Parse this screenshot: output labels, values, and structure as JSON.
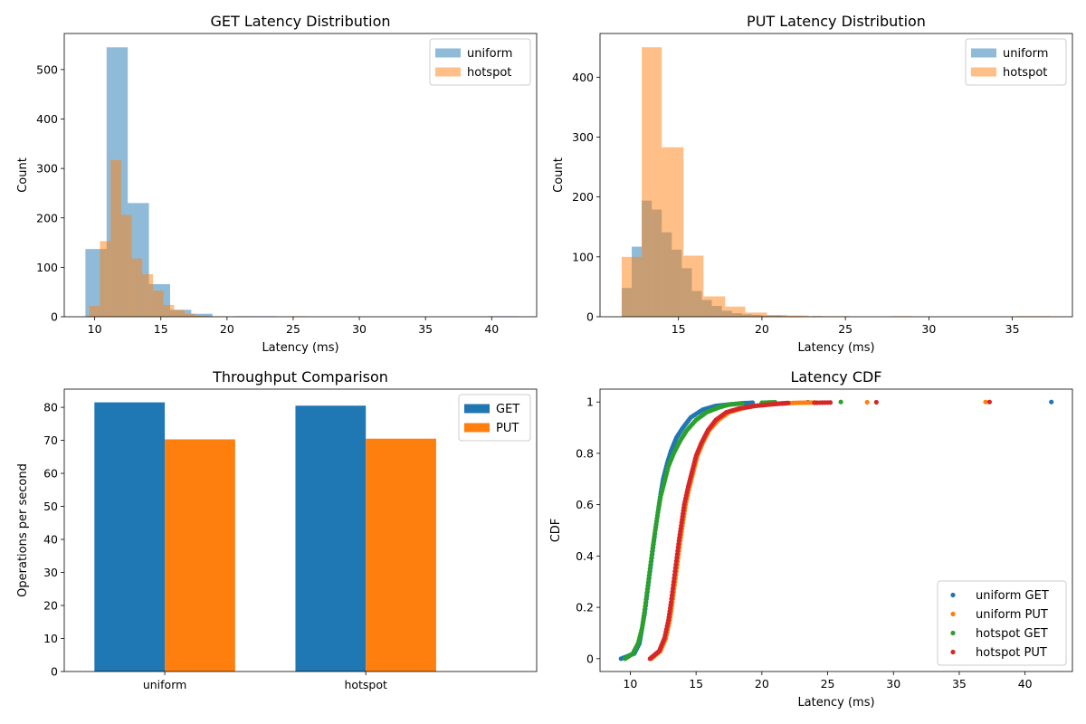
{
  "colors": {
    "blue": "#1f77b4",
    "orange": "#ff7f0e",
    "green": "#2ca02c",
    "red": "#d62728"
  },
  "chart_data": [
    {
      "type": "bar",
      "subtype": "histogram",
      "title": "GET Latency Distribution",
      "xlabel": "Latency (ms)",
      "ylabel": "Count",
      "xlim": [
        7.7,
        43.4
      ],
      "ylim": [
        0,
        573
      ],
      "xticks": [
        10,
        15,
        20,
        25,
        30,
        35,
        40
      ],
      "yticks": [
        0,
        100,
        200,
        300,
        400,
        500
      ],
      "legend_position": "top-right",
      "series": [
        {
          "name": "uniform",
          "color": "#1f77b4",
          "opacity": 0.5,
          "bins": [
            {
              "x0": 9.3,
              "x1": 10.9,
              "count": 137
            },
            {
              "x0": 10.9,
              "x1": 12.5,
              "count": 545
            },
            {
              "x0": 12.5,
              "x1": 14.1,
              "count": 230
            },
            {
              "x0": 14.1,
              "x1": 15.7,
              "count": 66
            },
            {
              "x0": 15.7,
              "x1": 17.3,
              "count": 14
            },
            {
              "x0": 17.3,
              "x1": 18.9,
              "count": 6
            },
            {
              "x0": 18.9,
              "x1": 20.5,
              "count": 0
            },
            {
              "x0": 20.5,
              "x1": 22.1,
              "count": 1
            },
            {
              "x0": 22.1,
              "x1": 23.7,
              "count": 1
            },
            {
              "x0": 23.7,
              "x1": 25.3,
              "count": 0
            },
            {
              "x0": 25.3,
              "x1": 26.9,
              "count": 0
            },
            {
              "x0": 26.9,
              "x1": 28.5,
              "count": 0
            },
            {
              "x0": 28.5,
              "x1": 30.1,
              "count": 0
            },
            {
              "x0": 30.1,
              "x1": 31.7,
              "count": 0
            },
            {
              "x0": 31.7,
              "x1": 33.3,
              "count": 0
            },
            {
              "x0": 33.3,
              "x1": 34.9,
              "count": 0
            },
            {
              "x0": 34.9,
              "x1": 36.5,
              "count": 0
            },
            {
              "x0": 36.5,
              "x1": 38.1,
              "count": 0
            },
            {
              "x0": 38.1,
              "x1": 39.7,
              "count": 0
            },
            {
              "x0": 39.7,
              "x1": 42.0,
              "count": 1
            }
          ]
        },
        {
          "name": "hotspot",
          "color": "#ff7f0e",
          "opacity": 0.5,
          "bins": [
            {
              "x0": 9.6,
              "x1": 10.4,
              "count": 22
            },
            {
              "x0": 10.4,
              "x1": 11.2,
              "count": 153
            },
            {
              "x0": 11.2,
              "x1": 12.0,
              "count": 317
            },
            {
              "x0": 12.0,
              "x1": 12.8,
              "count": 206
            },
            {
              "x0": 12.8,
              "x1": 13.6,
              "count": 118
            },
            {
              "x0": 13.6,
              "x1": 14.4,
              "count": 86
            },
            {
              "x0": 14.4,
              "x1": 15.2,
              "count": 53
            },
            {
              "x0": 15.2,
              "x1": 16.0,
              "count": 24
            },
            {
              "x0": 16.0,
              "x1": 16.8,
              "count": 14
            },
            {
              "x0": 16.8,
              "x1": 17.6,
              "count": 6
            },
            {
              "x0": 17.6,
              "x1": 18.4,
              "count": 2
            },
            {
              "x0": 18.4,
              "x1": 19.2,
              "count": 1
            },
            {
              "x0": 19.2,
              "x1": 20.0,
              "count": 1
            },
            {
              "x0": 20.0,
              "x1": 20.8,
              "count": 0
            },
            {
              "x0": 20.8,
              "x1": 21.6,
              "count": 1
            },
            {
              "x0": 21.6,
              "x1": 22.4,
              "count": 0
            },
            {
              "x0": 22.4,
              "x1": 23.2,
              "count": 0
            },
            {
              "x0": 23.2,
              "x1": 24.0,
              "count": 0
            },
            {
              "x0": 24.0,
              "x1": 24.8,
              "count": 0
            },
            {
              "x0": 24.8,
              "x1": 26.0,
              "count": 1
            }
          ]
        }
      ]
    },
    {
      "type": "bar",
      "subtype": "histogram",
      "title": "PUT Latency Distribution",
      "xlabel": "Latency (ms)",
      "ylabel": "Count",
      "xlim": [
        10.3,
        38.6
      ],
      "ylim": [
        0,
        473
      ],
      "xticks": [
        15,
        20,
        25,
        30,
        35
      ],
      "yticks": [
        0,
        100,
        200,
        300,
        400
      ],
      "legend_position": "top-right",
      "series": [
        {
          "name": "uniform",
          "color": "#1f77b4",
          "opacity": 0.5,
          "bins": [
            {
              "x0": 11.6,
              "x1": 12.2,
              "count": 48
            },
            {
              "x0": 12.2,
              "x1": 12.8,
              "count": 117
            },
            {
              "x0": 12.8,
              "x1": 13.4,
              "count": 194
            },
            {
              "x0": 13.4,
              "x1": 14.0,
              "count": 179
            },
            {
              "x0": 14.0,
              "x1": 14.6,
              "count": 141
            },
            {
              "x0": 14.6,
              "x1": 15.2,
              "count": 112
            },
            {
              "x0": 15.2,
              "x1": 15.8,
              "count": 81
            },
            {
              "x0": 15.8,
              "x1": 16.4,
              "count": 43
            },
            {
              "x0": 16.4,
              "x1": 17.0,
              "count": 28
            },
            {
              "x0": 17.0,
              "x1": 17.6,
              "count": 18
            },
            {
              "x0": 17.6,
              "x1": 18.2,
              "count": 10
            },
            {
              "x0": 18.2,
              "x1": 18.8,
              "count": 6
            },
            {
              "x0": 18.8,
              "x1": 19.4,
              "count": 4
            },
            {
              "x0": 19.4,
              "x1": 20.0,
              "count": 3
            },
            {
              "x0": 20.0,
              "x1": 20.6,
              "count": 2
            },
            {
              "x0": 20.6,
              "x1": 21.2,
              "count": 2
            },
            {
              "x0": 21.2,
              "x1": 21.8,
              "count": 1
            },
            {
              "x0": 21.8,
              "x1": 22.4,
              "count": 1
            },
            {
              "x0": 22.4,
              "x1": 23.0,
              "count": 0
            },
            {
              "x0": 23.0,
              "x1": 23.6,
              "count": 1
            }
          ]
        },
        {
          "name": "hotspot",
          "color": "#ff7f0e",
          "opacity": 0.5,
          "bins": [
            {
              "x0": 11.6,
              "x1": 12.8,
              "count": 100
            },
            {
              "x0": 12.8,
              "x1": 14.0,
              "count": 450
            },
            {
              "x0": 14.0,
              "x1": 15.3,
              "count": 283
            },
            {
              "x0": 15.3,
              "x1": 16.5,
              "count": 102
            },
            {
              "x0": 16.5,
              "x1": 17.8,
              "count": 34
            },
            {
              "x0": 17.8,
              "x1": 19.0,
              "count": 17
            },
            {
              "x0": 19.0,
              "x1": 20.3,
              "count": 7
            },
            {
              "x0": 20.3,
              "x1": 21.5,
              "count": 3
            },
            {
              "x0": 21.5,
              "x1": 22.8,
              "count": 2
            },
            {
              "x0": 22.8,
              "x1": 24.0,
              "count": 1
            },
            {
              "x0": 24.0,
              "x1": 25.3,
              "count": 1
            },
            {
              "x0": 25.3,
              "x1": 26.5,
              "count": 0
            },
            {
              "x0": 26.5,
              "x1": 27.8,
              "count": 0
            },
            {
              "x0": 27.8,
              "x1": 29.0,
              "count": 1
            },
            {
              "x0": 29.0,
              "x1": 30.3,
              "count": 0
            },
            {
              "x0": 30.3,
              "x1": 31.5,
              "count": 0
            },
            {
              "x0": 31.5,
              "x1": 32.8,
              "count": 0
            },
            {
              "x0": 32.8,
              "x1": 34.0,
              "count": 0
            },
            {
              "x0": 34.0,
              "x1": 35.3,
              "count": 0
            },
            {
              "x0": 35.3,
              "x1": 37.3,
              "count": 1
            }
          ]
        }
      ]
    },
    {
      "type": "bar",
      "title": "Throughput Comparison",
      "xlabel": "",
      "ylabel": "Operations per second",
      "categories": [
        "uniform",
        "hotspot"
      ],
      "ylim": [
        0,
        85.5
      ],
      "yticks": [
        0,
        10,
        20,
        30,
        40,
        50,
        60,
        70,
        80
      ],
      "legend_position": "top-right",
      "series": [
        {
          "name": "GET",
          "color": "#1f77b4",
          "values": [
            81.5,
            80.5
          ]
        },
        {
          "name": "PUT",
          "color": "#ff7f0e",
          "values": [
            70.3,
            70.5
          ]
        }
      ]
    },
    {
      "type": "scatter",
      "title": "Latency CDF",
      "xlabel": "Latency (ms)",
      "ylabel": "CDF",
      "xlim": [
        7.7,
        43.6
      ],
      "ylim": [
        -0.05,
        1.05
      ],
      "xticks": [
        10,
        15,
        20,
        25,
        30,
        35,
        40
      ],
      "yticks": [
        0.0,
        0.2,
        0.4,
        0.6,
        0.8,
        1.0
      ],
      "legend_position": "lower-right",
      "series": [
        {
          "name": "uniform GET",
          "color": "#1f77b4",
          "x": [
            9.3,
            10.3,
            10.7,
            10.9,
            11.1,
            11.3,
            11.5,
            11.7,
            11.9,
            12.1,
            12.3,
            12.5,
            12.8,
            13.1,
            13.5,
            14.0,
            14.6,
            15.5,
            16.5,
            17.5,
            18.5,
            19.3,
            21.0,
            23.5,
            42.0
          ],
          "y": [
            0.0,
            0.02,
            0.06,
            0.12,
            0.18,
            0.26,
            0.34,
            0.42,
            0.5,
            0.57,
            0.64,
            0.7,
            0.76,
            0.81,
            0.86,
            0.9,
            0.94,
            0.97,
            0.985,
            0.99,
            0.995,
            0.997,
            0.998,
            0.999,
            1.0
          ]
        },
        {
          "name": "uniform PUT",
          "color": "#ff7f0e",
          "x": [
            11.6,
            12.3,
            12.7,
            13.0,
            13.2,
            13.4,
            13.6,
            13.8,
            14.0,
            14.2,
            14.5,
            14.8,
            15.1,
            15.5,
            16.0,
            16.7,
            17.5,
            18.5,
            19.5,
            20.5,
            21.5,
            22.8,
            24.0,
            28.0,
            37.0
          ],
          "y": [
            0.0,
            0.03,
            0.08,
            0.15,
            0.22,
            0.3,
            0.38,
            0.46,
            0.53,
            0.6,
            0.67,
            0.73,
            0.79,
            0.84,
            0.89,
            0.93,
            0.96,
            0.975,
            0.985,
            0.99,
            0.995,
            0.997,
            0.998,
            0.999,
            1.0
          ]
        },
        {
          "name": "hotspot GET",
          "color": "#2ca02c",
          "x": [
            9.6,
            10.2,
            10.6,
            10.9,
            11.1,
            11.3,
            11.5,
            11.7,
            11.9,
            12.1,
            12.3,
            12.6,
            12.9,
            13.3,
            13.8,
            14.3,
            15.0,
            15.8,
            16.8,
            17.5,
            18.5,
            20.0,
            21.0,
            26.0
          ],
          "y": [
            0.0,
            0.02,
            0.06,
            0.12,
            0.19,
            0.27,
            0.35,
            0.43,
            0.5,
            0.57,
            0.63,
            0.69,
            0.75,
            0.8,
            0.85,
            0.89,
            0.93,
            0.96,
            0.98,
            0.99,
            0.995,
            0.997,
            0.999,
            1.0
          ]
        },
        {
          "name": "hotspot PUT",
          "color": "#d62728",
          "x": [
            11.5,
            12.2,
            12.6,
            12.9,
            13.1,
            13.3,
            13.5,
            13.7,
            13.9,
            14.1,
            14.4,
            14.7,
            15.0,
            15.4,
            15.9,
            16.5,
            17.3,
            18.3,
            19.5,
            20.5,
            21.5,
            22.0,
            24.0,
            25.2,
            28.7,
            37.3
          ],
          "y": [
            0.0,
            0.03,
            0.08,
            0.15,
            0.22,
            0.3,
            0.38,
            0.46,
            0.53,
            0.6,
            0.67,
            0.73,
            0.79,
            0.84,
            0.89,
            0.93,
            0.96,
            0.975,
            0.985,
            0.99,
            0.994,
            0.996,
            0.997,
            0.998,
            0.999,
            1.0
          ]
        }
      ]
    }
  ]
}
